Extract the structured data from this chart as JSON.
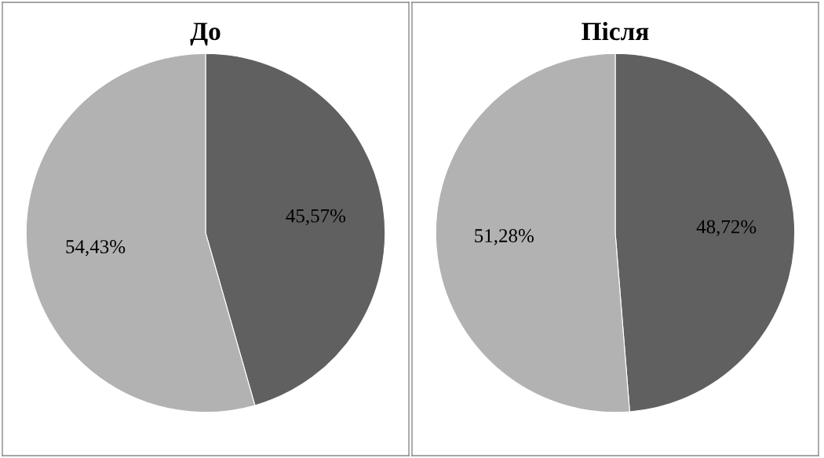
{
  "chart_data": [
    {
      "type": "pie",
      "title": "До",
      "categories": [
        null,
        null
      ],
      "values": [
        45.57,
        54.43
      ],
      "colors": [
        "#606060",
        "#b2b2b2"
      ],
      "value_labels": [
        "45,57%",
        "54,43%"
      ]
    },
    {
      "type": "pie",
      "title": "Після",
      "categories": [
        null,
        null
      ],
      "values": [
        48.72,
        51.28
      ],
      "colors": [
        "#606060",
        "#b2b2b2"
      ],
      "value_labels": [
        "48,72%",
        "51,28%"
      ]
    }
  ]
}
